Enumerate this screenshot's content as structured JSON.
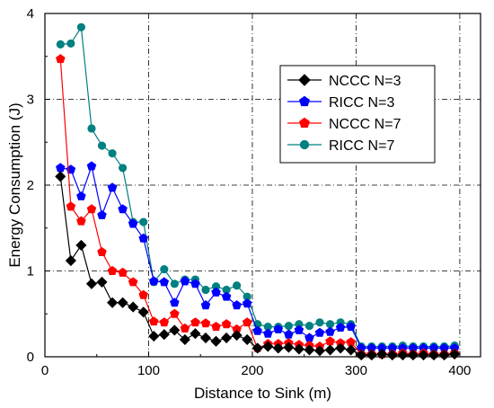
{
  "chart_data": {
    "type": "line",
    "xlabel": "Distance to Sink (m)",
    "ylabel": "Energy Consumption (J)",
    "xlim": [
      0,
      420
    ],
    "ylim": [
      0,
      4
    ],
    "xticks": [
      0,
      100,
      200,
      300,
      400
    ],
    "yticks": [
      0,
      1,
      2,
      3,
      4
    ],
    "grid": "dash-dot at major ticks",
    "legend_position": "top-right",
    "series": [
      {
        "name": "NCCC N=3",
        "color": "#000000",
        "marker": "diamond",
        "x": [
          15,
          25,
          35,
          45,
          55,
          65,
          75,
          85,
          95,
          105,
          115,
          125,
          135,
          145,
          155,
          165,
          175,
          185,
          195,
          205,
          215,
          225,
          235,
          245,
          255,
          265,
          275,
          285,
          295,
          305,
          315,
          325,
          335,
          345,
          355,
          365,
          375,
          385,
          395
        ],
        "y": [
          2.1,
          1.12,
          1.3,
          0.85,
          0.87,
          0.63,
          0.63,
          0.58,
          0.52,
          0.24,
          0.26,
          0.31,
          0.2,
          0.27,
          0.22,
          0.18,
          0.22,
          0.25,
          0.2,
          0.1,
          0.12,
          0.1,
          0.11,
          0.09,
          0.08,
          0.07,
          0.08,
          0.1,
          0.08,
          0.02,
          0.02,
          0.03,
          0.02,
          0.02,
          0.02,
          0.02,
          0.02,
          0.02,
          0.03
        ]
      },
      {
        "name": "RICC N=3",
        "color": "#0000ff",
        "marker": "pentagon",
        "x": [
          15,
          25,
          35,
          45,
          55,
          65,
          75,
          85,
          95,
          105,
          115,
          125,
          135,
          145,
          155,
          165,
          175,
          185,
          195,
          205,
          215,
          225,
          235,
          245,
          255,
          265,
          275,
          285,
          295,
          305,
          315,
          325,
          335,
          345,
          355,
          365,
          375,
          385,
          395
        ],
        "y": [
          2.2,
          2.18,
          1.87,
          2.22,
          1.65,
          1.97,
          1.72,
          1.55,
          1.38,
          0.88,
          0.87,
          0.63,
          0.88,
          0.85,
          0.6,
          0.75,
          0.7,
          0.6,
          0.62,
          0.3,
          0.27,
          0.32,
          0.26,
          0.31,
          0.22,
          0.28,
          0.29,
          0.34,
          0.35,
          0.1,
          0.1,
          0.1,
          0.1,
          0.1,
          0.1,
          0.1,
          0.1,
          0.1,
          0.1
        ]
      },
      {
        "name": "NCCC N=7",
        "color": "#ff0000",
        "marker": "pentagon",
        "x": [
          15,
          25,
          35,
          45,
          55,
          65,
          75,
          85,
          95,
          105,
          115,
          125,
          135,
          145,
          155,
          165,
          175,
          185,
          195,
          205,
          215,
          225,
          235,
          245,
          255,
          265,
          275,
          285,
          295,
          305,
          315,
          325,
          335,
          345,
          355,
          365,
          375,
          385,
          395
        ],
        "y": [
          3.47,
          1.75,
          1.58,
          1.72,
          1.22,
          1.0,
          0.98,
          0.87,
          0.72,
          0.41,
          0.4,
          0.5,
          0.33,
          0.4,
          0.39,
          0.35,
          0.38,
          0.32,
          0.4,
          0.1,
          0.15,
          0.15,
          0.16,
          0.14,
          0.13,
          0.12,
          0.18,
          0.16,
          0.17,
          0.03,
          0.03,
          0.03,
          0.03,
          0.04,
          0.03,
          0.04,
          0.03,
          0.03,
          0.04
        ]
      },
      {
        "name": "RICC N=7",
        "color": "#008080",
        "marker": "circle",
        "x": [
          15,
          25,
          35,
          45,
          55,
          65,
          75,
          85,
          95,
          105,
          115,
          125,
          135,
          145,
          155,
          165,
          175,
          185,
          195,
          205,
          215,
          225,
          235,
          245,
          255,
          265,
          275,
          285,
          295,
          305,
          315,
          325,
          335,
          345,
          355,
          365,
          375,
          385,
          395
        ],
        "y": [
          3.64,
          3.65,
          3.84,
          2.66,
          2.46,
          2.37,
          2.2,
          1.57,
          1.57,
          0.87,
          1.02,
          0.85,
          0.9,
          0.9,
          0.78,
          0.82,
          0.78,
          0.83,
          0.7,
          0.38,
          0.35,
          0.35,
          0.36,
          0.38,
          0.36,
          0.4,
          0.38,
          0.4,
          0.38,
          0.12,
          0.12,
          0.12,
          0.12,
          0.13,
          0.12,
          0.12,
          0.12,
          0.12,
          0.13
        ]
      }
    ]
  }
}
